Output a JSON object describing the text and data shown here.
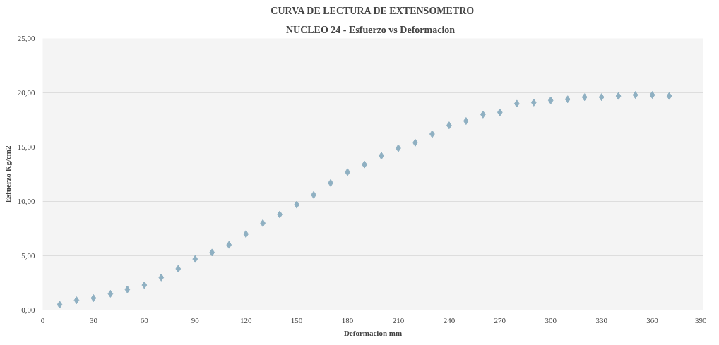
{
  "chart_data": {
    "type": "scatter",
    "title": "CURVA DE LECTURA DE EXTENSOMETRO",
    "subtitle": "NUCLEO  24 - Esfuerzo vs  Deformacion",
    "xlabel": "Deformacion mm",
    "ylabel": "Esfuerzo Kg/cm2",
    "x": [
      10,
      20,
      30,
      40,
      50,
      60,
      70,
      80,
      90,
      100,
      110,
      120,
      130,
      140,
      150,
      160,
      170,
      180,
      190,
      200,
      210,
      220,
      230,
      240,
      250,
      260,
      270,
      280,
      290,
      300,
      310,
      320,
      330,
      340,
      350,
      360,
      370
    ],
    "series": [
      {
        "color": "#8fb0c2",
        "values": [
          0.5,
          0.9,
          1.1,
          1.5,
          1.9,
          2.3,
          3.0,
          3.8,
          4.7,
          5.3,
          6.0,
          7.0,
          8.0,
          8.8,
          9.7,
          10.6,
          11.7,
          12.7,
          13.4,
          14.2,
          14.9,
          15.4,
          16.2,
          17.0,
          17.4,
          18.0,
          18.2,
          19.0,
          19.1,
          19.3,
          19.4,
          19.6,
          19.6,
          19.7,
          19.8,
          19.8,
          19.7
        ]
      }
    ],
    "xlim": [
      0,
      390
    ],
    "xticks": [
      0,
      30,
      60,
      90,
      120,
      150,
      180,
      210,
      240,
      270,
      300,
      330,
      360,
      390
    ],
    "ylim": [
      0,
      25
    ],
    "yticks": [
      {
        "value": 0,
        "label": "0,00"
      },
      {
        "value": 5,
        "label": "5,00"
      },
      {
        "value": 10,
        "label": "10,00"
      },
      {
        "value": 15,
        "label": "15,00"
      },
      {
        "value": 20,
        "label": "20,00"
      },
      {
        "value": 25,
        "label": "25,00"
      }
    ],
    "grid": "y",
    "marker": "diamond"
  }
}
